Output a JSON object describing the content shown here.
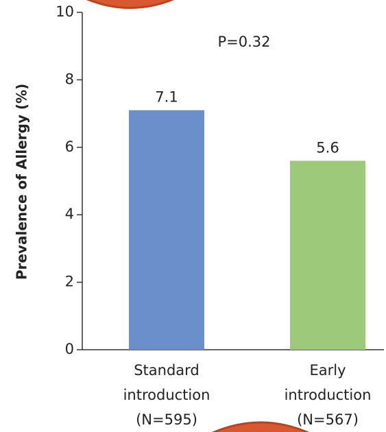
{
  "chart_data": {
    "type": "bar",
    "y_label": "Prevalence of Allergy (%)",
    "annotation": "P=0.32",
    "categories": [
      "Standard\nintroduction\n(N=595)",
      "Early\nintroduction\n(N=567)"
    ],
    "values": [
      7.1,
      5.6
    ],
    "colors": [
      "#6a8fcb",
      "#9dc97b"
    ],
    "ylim": [
      0,
      10
    ],
    "yticks": [
      0,
      2,
      4,
      6,
      8,
      10
    ]
  }
}
